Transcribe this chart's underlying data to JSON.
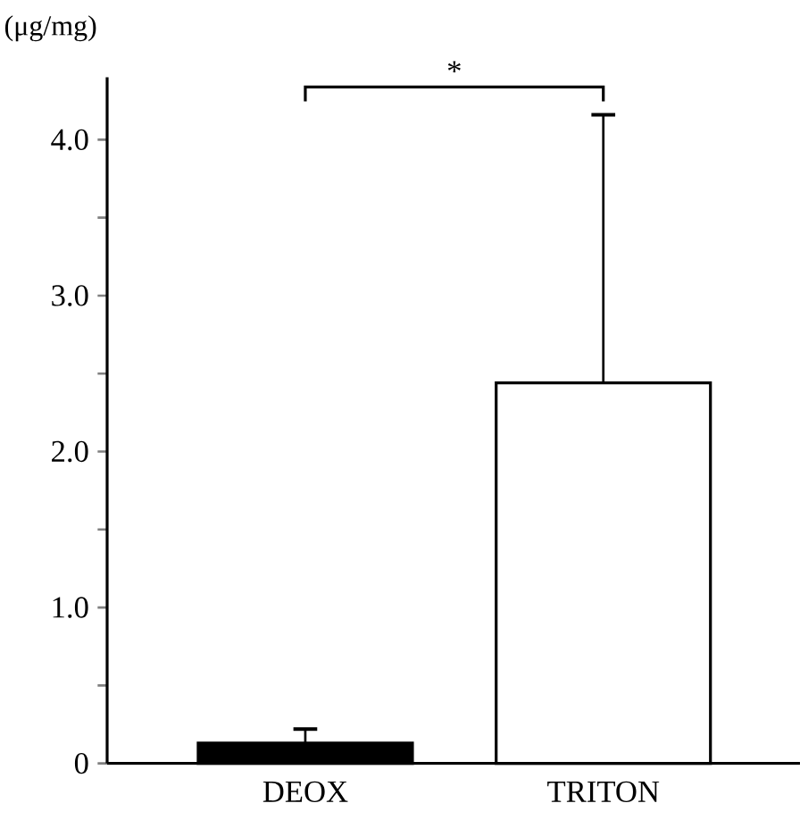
{
  "chart_data": {
    "type": "bar",
    "ylabel": "(μg/mg)",
    "categories": [
      "DEOX",
      "TRITON"
    ],
    "values": [
      0.13,
      2.44
    ],
    "colors": [
      "#000000",
      "#ffffff"
    ],
    "errors": [
      [
        0.13,
        0.22
      ],
      [
        2.44,
        4.16
      ]
    ],
    "ylim": [
      0,
      4.4
    ],
    "yticks": [
      {
        "value": 0,
        "label": "0"
      },
      {
        "value": 0.5,
        "label": null
      },
      {
        "value": 1,
        "label": "1.0"
      },
      {
        "value": 1.5,
        "label": null
      },
      {
        "value": 2,
        "label": "2.0"
      },
      {
        "value": 2.5,
        "label": null
      },
      {
        "value": 3,
        "label": "3.0"
      },
      {
        "value": 3.5,
        "label": null
      },
      {
        "value": 4,
        "label": "4.0"
      }
    ],
    "annotations": [
      "*"
    ]
  }
}
